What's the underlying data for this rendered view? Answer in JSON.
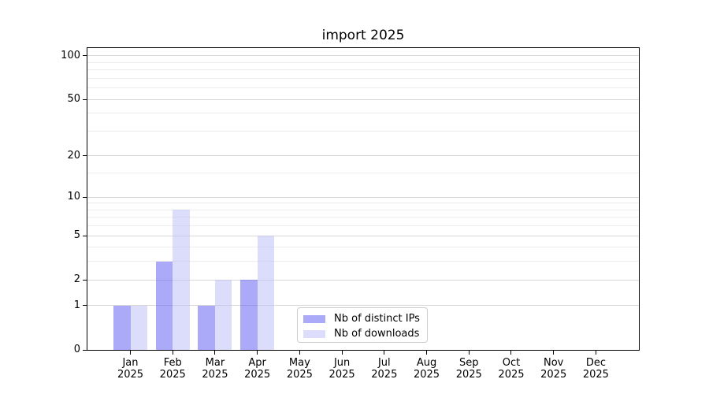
{
  "title": "import 2025",
  "chart_data": {
    "type": "bar",
    "title": "import 2025",
    "categories": [
      "Jan 2025",
      "Feb 2025",
      "Mar 2025",
      "Apr 2025",
      "May 2025",
      "Jun 2025",
      "Jul 2025",
      "Aug 2025",
      "Sep 2025",
      "Oct 2025",
      "Nov 2025",
      "Dec 2025"
    ],
    "x_tick_months": [
      "Jan",
      "Feb",
      "Mar",
      "Apr",
      "May",
      "Jun",
      "Jul",
      "Aug",
      "Sep",
      "Oct",
      "Nov",
      "Dec"
    ],
    "x_tick_year": "2025",
    "series": [
      {
        "name": "Nb of distinct IPs",
        "color": "#5555f1",
        "alpha": 0.5,
        "values": [
          1,
          3,
          1,
          2,
          0,
          0,
          0,
          0,
          0,
          0,
          0,
          0
        ]
      },
      {
        "name": "Nb of downloads",
        "color": "#b9bbf7",
        "alpha": 0.5,
        "values": [
          1,
          8,
          2,
          5,
          0,
          0,
          0,
          0,
          0,
          0,
          0,
          0
        ]
      }
    ],
    "yscale": "log1p",
    "ylim": [
      0,
      113.3
    ],
    "y_major_ticks": [
      0,
      1,
      2,
      5,
      10,
      20,
      50,
      100
    ],
    "y_minor_gridlines": [
      3,
      4,
      6,
      7,
      8,
      9,
      15,
      30,
      40,
      60,
      70,
      80,
      90
    ],
    "grid": true,
    "legend_position": "lower center"
  },
  "colors": {
    "grid_major": "#d8d8d8",
    "grid_minor": "#ededed",
    "axis": "#000000",
    "background": "#ffffff",
    "legend_border": "#cccccc",
    "text": "#000000"
  }
}
